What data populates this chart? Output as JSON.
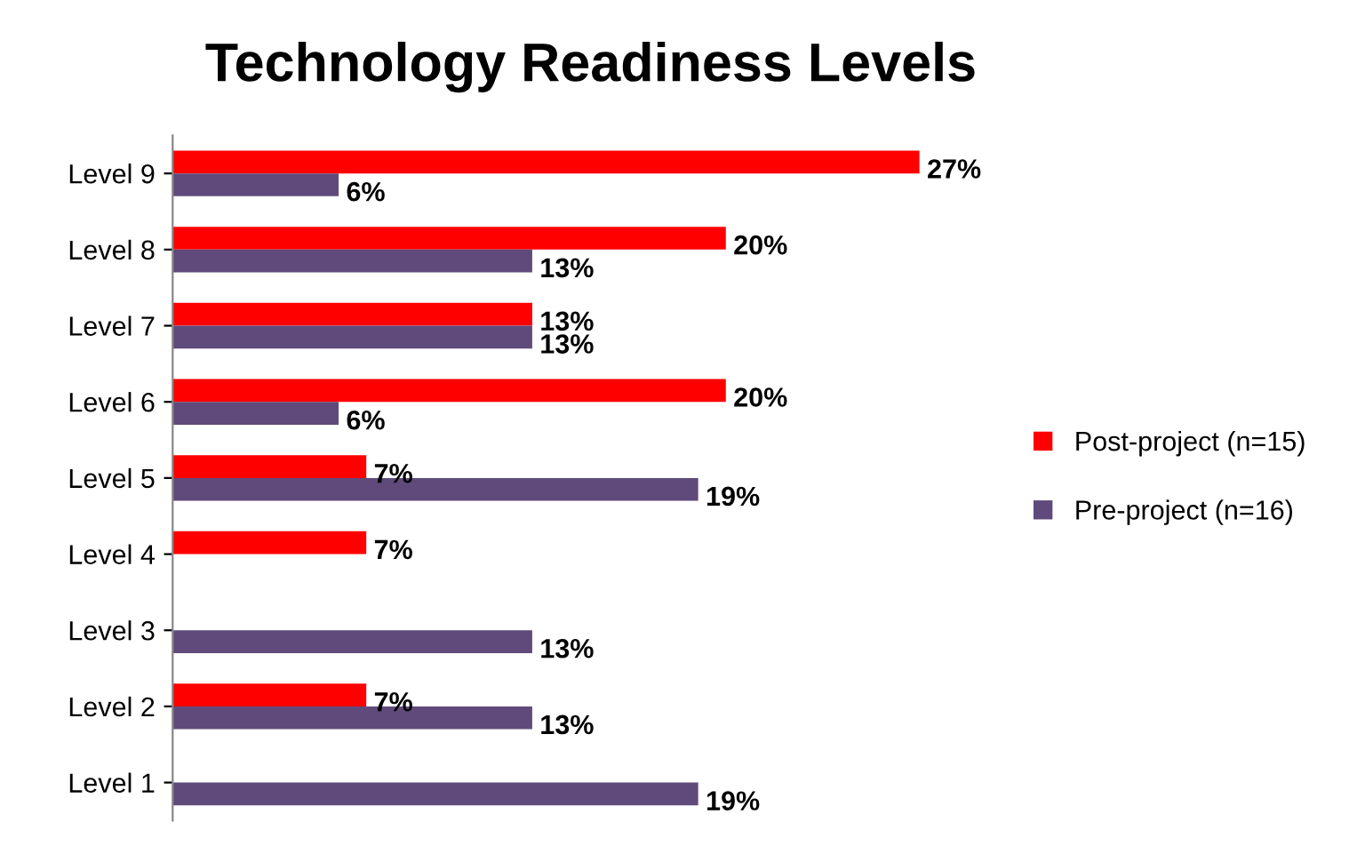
{
  "chart_data": {
    "type": "bar",
    "orientation": "horizontal",
    "title": "Technology Readiness Levels",
    "categories": [
      "Level 9",
      "Level 8",
      "Level 7",
      "Level 6",
      "Level 5",
      "Level 4",
      "Level 3",
      "Level 2",
      "Level 1"
    ],
    "series": [
      {
        "name": "Post-project (n=15)",
        "color": "#ff0000",
        "values": [
          27,
          20,
          13,
          20,
          7,
          7,
          null,
          7,
          null
        ],
        "value_labels": [
          "27%",
          "20%",
          "13%",
          "20%",
          "7%",
          "7%",
          null,
          "7%",
          null
        ]
      },
      {
        "name": "Pre-project (n=16)",
        "color": "#604a7b",
        "values": [
          6,
          13,
          13,
          6,
          19,
          null,
          13,
          13,
          19
        ],
        "value_labels": [
          "6%",
          "13%",
          "13%",
          "6%",
          "19%",
          null,
          "13%",
          "13%",
          "19%"
        ]
      }
    ],
    "legend": "right",
    "grid": false
  }
}
